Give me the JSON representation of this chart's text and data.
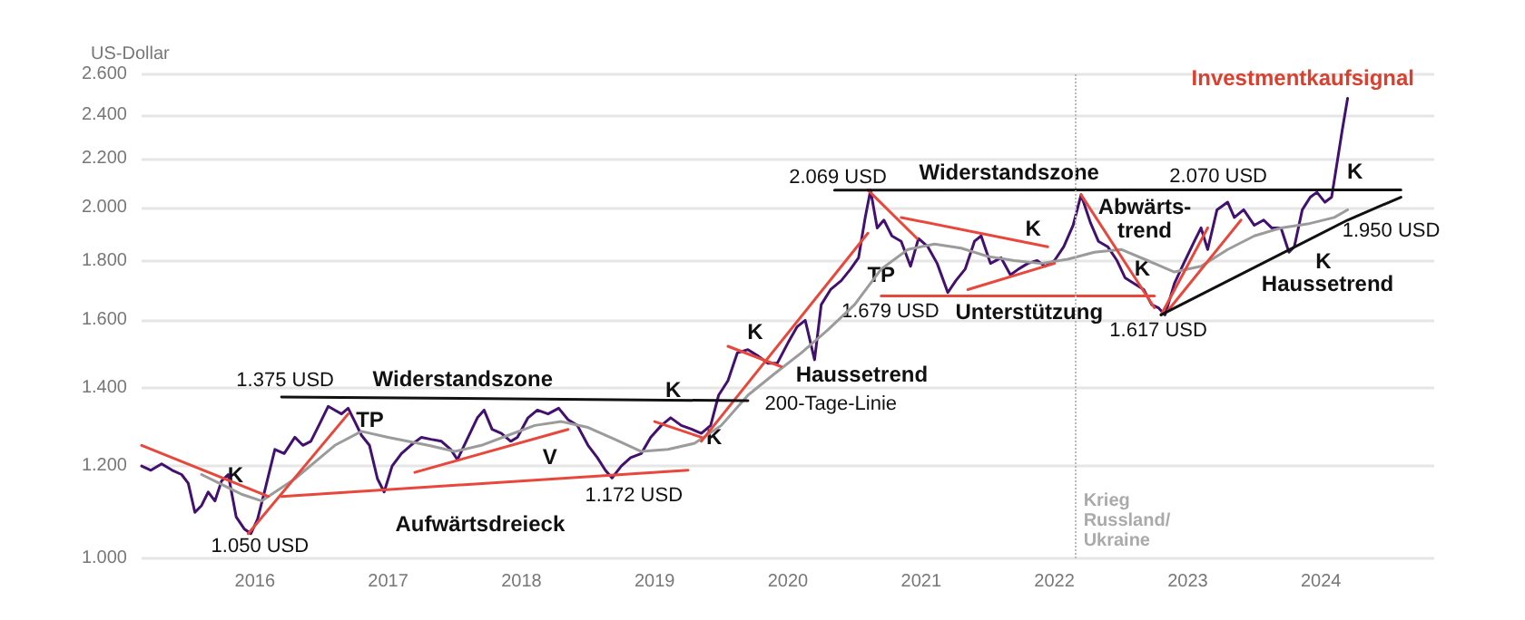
{
  "chart_data": {
    "type": "line",
    "title": "Investmentkaufsignal",
    "ylabel": "US-Dollar",
    "log": true,
    "grid": "y",
    "marker": "none",
    "line_style": "solid",
    "xlim": [
      2015.15,
      2024.85
    ],
    "xticks": [
      2016,
      2017,
      2018,
      2019,
      2020,
      2021,
      2022,
      2023,
      2024
    ],
    "ylim": [
      1000,
      2600
    ],
    "yticks": [
      {
        "value": 1000,
        "label": "1.000"
      },
      {
        "value": 1200,
        "label": "1.200"
      },
      {
        "value": 1400,
        "label": "1.400"
      },
      {
        "value": 1600,
        "label": "1.600"
      },
      {
        "value": 1800,
        "label": "1.800"
      },
      {
        "value": 2000,
        "label": "2.000"
      },
      {
        "value": 2200,
        "label": "2.200"
      },
      {
        "value": 2400,
        "label": "2.400"
      },
      {
        "value": 2600,
        "label": "2.600"
      }
    ],
    "series": [
      {
        "color": "#42106e",
        "x": [
          2015.15,
          2015.22,
          2015.3,
          2015.38,
          2015.45,
          2015.5,
          2015.55,
          2015.6,
          2015.65,
          2015.7,
          2015.75,
          2015.8,
          2015.86,
          2015.92,
          2015.97,
          2016.02,
          2016.08,
          2016.15,
          2016.22,
          2016.3,
          2016.36,
          2016.42,
          2016.48,
          2016.55,
          2016.6,
          2016.65,
          2016.7,
          2016.75,
          2016.8,
          2016.86,
          2016.92,
          2016.97,
          2017.03,
          2017.1,
          2017.17,
          2017.25,
          2017.32,
          2017.4,
          2017.47,
          2017.52,
          2017.6,
          2017.67,
          2017.72,
          2017.78,
          2017.85,
          2017.92,
          2017.97,
          2018.05,
          2018.12,
          2018.2,
          2018.28,
          2018.35,
          2018.42,
          2018.5,
          2018.57,
          2018.63,
          2018.68,
          2018.75,
          2018.82,
          2018.9,
          2018.97,
          2019.05,
          2019.12,
          2019.2,
          2019.28,
          2019.35,
          2019.42,
          2019.48,
          2019.55,
          2019.62,
          2019.7,
          2019.78,
          2019.85,
          2019.92,
          2020.0,
          2020.07,
          2020.13,
          2020.2,
          2020.25,
          2020.32,
          2020.4,
          2020.47,
          2020.53,
          2020.58,
          2020.62,
          2020.67,
          2020.72,
          2020.78,
          2020.85,
          2020.92,
          2020.98,
          2021.05,
          2021.12,
          2021.2,
          2021.26,
          2021.33,
          2021.4,
          2021.45,
          2021.52,
          2021.6,
          2021.67,
          2021.73,
          2021.8,
          2021.87,
          2021.93,
          2022.0,
          2022.07,
          2022.14,
          2022.2,
          2022.27,
          2022.33,
          2022.4,
          2022.47,
          2022.53,
          2022.6,
          2022.67,
          2022.73,
          2022.78,
          2022.83,
          2022.9,
          2022.97,
          2023.05,
          2023.1,
          2023.15,
          2023.22,
          2023.3,
          2023.35,
          2023.42,
          2023.5,
          2023.57,
          2023.63,
          2023.7,
          2023.76,
          2023.8,
          2023.86,
          2023.92,
          2023.97,
          2024.03,
          2024.08,
          2024.12,
          2024.16,
          2024.2
        ],
        "values": [
          1200,
          1190,
          1205,
          1190,
          1180,
          1160,
          1095,
          1110,
          1140,
          1120,
          1165,
          1180,
          1085,
          1060,
          1050,
          1080,
          1150,
          1240,
          1230,
          1270,
          1250,
          1260,
          1300,
          1350,
          1340,
          1330,
          1345,
          1310,
          1275,
          1250,
          1170,
          1140,
          1200,
          1230,
          1250,
          1270,
          1265,
          1260,
          1240,
          1215,
          1270,
          1320,
          1340,
          1290,
          1280,
          1260,
          1270,
          1320,
          1340,
          1330,
          1345,
          1315,
          1300,
          1250,
          1220,
          1190,
          1172,
          1200,
          1220,
          1230,
          1270,
          1300,
          1320,
          1300,
          1290,
          1280,
          1300,
          1380,
          1420,
          1500,
          1510,
          1490,
          1470,
          1470,
          1530,
          1580,
          1600,
          1480,
          1650,
          1700,
          1730,
          1770,
          1810,
          1960,
          2069,
          1920,
          1950,
          1890,
          1870,
          1780,
          1880,
          1850,
          1790,
          1690,
          1730,
          1770,
          1870,
          1890,
          1790,
          1810,
          1750,
          1770,
          1790,
          1800,
          1780,
          1800,
          1850,
          1930,
          2050,
          1940,
          1870,
          1850,
          1800,
          1740,
          1720,
          1700,
          1650,
          1640,
          1617,
          1720,
          1790,
          1870,
          1920,
          1840,
          1990,
          2020,
          1960,
          1990,
          1930,
          1950,
          1920,
          1920,
          1830,
          1850,
          1990,
          2040,
          2060,
          2020,
          2040,
          2180,
          2330,
          2480
        ]
      },
      {
        "color": "#9b9b9b",
        "x": [
          2015.6,
          2015.9,
          2016.05,
          2016.3,
          2016.6,
          2016.8,
          2017.0,
          2017.3,
          2017.5,
          2017.7,
          2017.9,
          2018.1,
          2018.3,
          2018.5,
          2018.7,
          2018.9,
          2019.1,
          2019.3,
          2019.5,
          2019.7,
          2019.9,
          2020.1,
          2020.3,
          2020.5,
          2020.7,
          2020.9,
          2021.1,
          2021.3,
          2021.5,
          2021.7,
          2021.9,
          2022.1,
          2022.3,
          2022.5,
          2022.7,
          2022.9,
          2023.1,
          2023.3,
          2023.5,
          2023.7,
          2023.9,
          2024.1,
          2024.2
        ],
        "values": [
          1180,
          1135,
          1120,
          1170,
          1250,
          1285,
          1270,
          1250,
          1235,
          1250,
          1275,
          1300,
          1310,
          1295,
          1265,
          1235,
          1240,
          1255,
          1300,
          1380,
          1440,
          1500,
          1570,
          1650,
          1770,
          1840,
          1860,
          1845,
          1815,
          1800,
          1790,
          1805,
          1830,
          1840,
          1800,
          1760,
          1780,
          1840,
          1890,
          1920,
          1935,
          1960,
          1990
        ]
      },
      {
        "color": "#e8483c",
        "x": [
          2015.15,
          2016.1
        ],
        "values": [
          1250,
          1130
        ]
      },
      {
        "color": "#e8483c",
        "x": [
          2015.95,
          2016.7
        ],
        "values": [
          1050,
          1330
        ]
      },
      {
        "color": "#e8483c",
        "x": [
          2016.2,
          2019.25
        ],
        "values": [
          1130,
          1190
        ]
      },
      {
        "color": "#e8483c",
        "x": [
          2017.2,
          2018.35
        ],
        "values": [
          1185,
          1290
        ]
      },
      {
        "color": "#e8483c",
        "x": [
          2019.0,
          2019.35
        ],
        "values": [
          1310,
          1270
        ]
      },
      {
        "color": "#e8483c",
        "x": [
          2019.35,
          2020.6
        ],
        "values": [
          1260,
          1900
        ]
      },
      {
        "color": "#e8483c",
        "x": [
          2019.55,
          2019.95
        ],
        "values": [
          1520,
          1460
        ]
      },
      {
        "color": "#e8483c",
        "x": [
          2020.6,
          2020.97
        ],
        "values": [
          2069,
          1880
        ]
      },
      {
        "color": "#e8483c",
        "x": [
          2020.85,
          2021.95
        ],
        "values": [
          1960,
          1850
        ]
      },
      {
        "color": "#e8483c",
        "x": [
          2020.7,
          2022.75
        ],
        "values": [
          1679,
          1679
        ]
      },
      {
        "color": "#e8483c",
        "x": [
          2021.35,
          2022.0
        ],
        "values": [
          1700,
          1790
        ]
      },
      {
        "color": "#e8483c",
        "x": [
          2022.2,
          2022.75
        ],
        "values": [
          2050,
          1640
        ]
      },
      {
        "color": "#e8483c",
        "x": [
          2022.8,
          2023.15
        ],
        "values": [
          1617,
          1920
        ]
      },
      {
        "color": "#e8483c",
        "x": [
          2022.85,
          2023.4
        ],
        "values": [
          1630,
          1950
        ]
      },
      {
        "color": "#111111",
        "x": [
          2016.2,
          2019.7
        ],
        "values": [
          1375,
          1365
        ]
      },
      {
        "color": "#111111",
        "x": [
          2020.35,
          2024.6
        ],
        "values": [
          2069,
          2070
        ]
      },
      {
        "color": "#111111",
        "x": [
          2022.8,
          2024.2,
          2024.6
        ],
        "values": [
          1617,
          1950,
          2040
        ]
      }
    ],
    "ref_lines": [
      {
        "axis": "x",
        "value": 2022.15,
        "label": "Krieg\nRussland/\nUkraine",
        "color": "#bbbbbb",
        "line_style": "dotted"
      }
    ],
    "annotations": [
      {
        "text": "1.375 USD",
        "x": 2016.2,
        "y": 1375
      },
      {
        "text": "Widerstandszone",
        "x": 2017.56,
        "y": 1371
      },
      {
        "text": "TP",
        "x": 2016.7,
        "y": 1330
      },
      {
        "text": "K",
        "x": 2015.8,
        "y": 1180
      },
      {
        "text": "V",
        "x": 2018.35,
        "y": 1290
      },
      {
        "text": "1.050 USD",
        "x": 2015.97,
        "y": 1050
      },
      {
        "text": "1.172 USD",
        "x": 2018.68,
        "y": 1172
      },
      {
        "text": "Aufwärtsdreieck",
        "x": 2017.69,
        "y": 1159
      },
      {
        "text": "K",
        "x": 2019.48,
        "y": 1380
      },
      {
        "text": "K",
        "x": 2019.35,
        "y": 1270
      },
      {
        "text": "K",
        "x": 2019.55,
        "y": 1520
      },
      {
        "text": "Haussetrend",
        "x": 2020.2,
        "y": 1480
      },
      {
        "text": "200-Tage-Linie",
        "x": 2019.9,
        "y": 1440
      },
      {
        "text": "2.069 USD",
        "x": 2020.62,
        "y": 2069
      },
      {
        "text": "Widerstandszone",
        "x": 2021.66,
        "y": 2069
      },
      {
        "text": "TP",
        "x": 2020.7,
        "y": 1770
      },
      {
        "text": "K",
        "x": 2021.95,
        "y": 1850
      },
      {
        "text": "1.679 USD",
        "x": 2020.7,
        "y": 1679
      },
      {
        "text": "Unterstützung",
        "x": 2021.81,
        "y": 1679
      },
      {
        "text": "K",
        "x": 2022.7,
        "y": 1800
      },
      {
        "text": "1.617 USD",
        "x": 2022.78,
        "y": 1617
      },
      {
        "text": "Abwärts-\ntrend",
        "x": 2022.2,
        "y": 2050
      },
      {
        "text": "2.070 USD",
        "x": 2023.23,
        "y": 2070
      },
      {
        "text": "K",
        "x": 2023.8,
        "y": 1850
      },
      {
        "text": "K",
        "x": 2024.16,
        "y": 2330
      },
      {
        "text": "1.950 USD",
        "x": 2024.2,
        "y": 1950
      },
      {
        "text": "Haussetrend",
        "x": 2024.05,
        "y": 1914
      }
    ]
  }
}
